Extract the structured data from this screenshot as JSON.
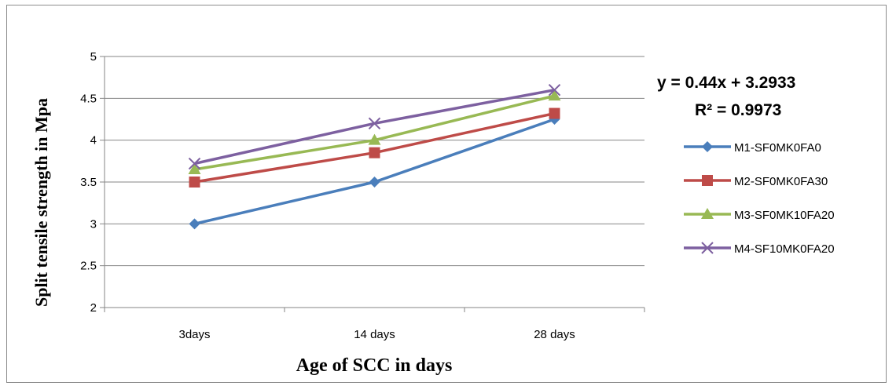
{
  "chart_data": {
    "type": "line",
    "categories": [
      "3days",
      "14 days",
      "28 days"
    ],
    "ylim": [
      2,
      5
    ],
    "yticks": [
      "2",
      "2.5",
      "3",
      "3.5",
      "4",
      "4.5",
      "5"
    ],
    "xlabel": "Age of SCC in days",
    "ylabel": "Split tensile strength in Mpa",
    "grid": true,
    "legend_position": "right",
    "trendline_equation": "y = 0.44x + 3.2933",
    "trendline_r2": "R² = 0.9973",
    "series": [
      {
        "name": "M1-SF0MK0FA0",
        "values": [
          3.0,
          3.5,
          4.25
        ],
        "color": "#4a7ebb",
        "marker": "diamond"
      },
      {
        "name": "M2-SF0MK0FA30",
        "values": [
          3.5,
          3.85,
          4.32
        ],
        "color": "#be4b48",
        "marker": "square"
      },
      {
        "name": "M3-SF0MK10FA20",
        "values": [
          3.65,
          4.0,
          4.53
        ],
        "color": "#98b954",
        "marker": "triangle"
      },
      {
        "name": "M4-SF10MK0FA20",
        "values": [
          3.72,
          4.2,
          4.6
        ],
        "color": "#7d60a0",
        "marker": "x"
      }
    ]
  }
}
